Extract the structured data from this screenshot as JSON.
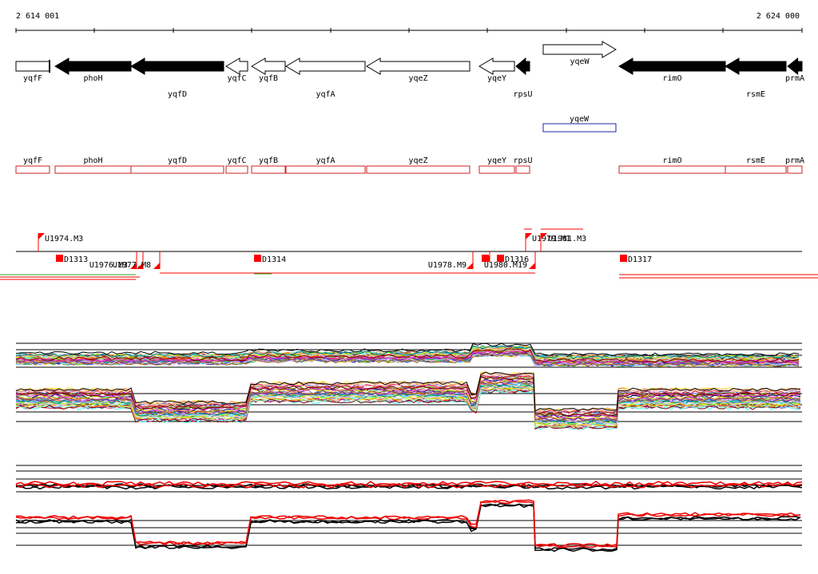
{
  "coordinates": {
    "start": "2 614 001",
    "end": "2 624 000"
  },
  "genes": [
    {
      "name": "yqfF",
      "filled": false,
      "dir": "right",
      "level": "low"
    },
    {
      "name": "phoH",
      "filled": true,
      "dir": "left",
      "level": "low"
    },
    {
      "name": "yqfD",
      "filled": true,
      "dir": "left",
      "level": "high"
    },
    {
      "name": "yqfC",
      "filled": false,
      "dir": "left",
      "level": "low"
    },
    {
      "name": "yqfB",
      "filled": false,
      "dir": "left",
      "level": "low"
    },
    {
      "name": "yqfA",
      "filled": false,
      "dir": "left",
      "level": "high"
    },
    {
      "name": "yqeZ",
      "filled": false,
      "dir": "left",
      "level": "low"
    },
    {
      "name": "yqeY",
      "filled": false,
      "dir": "left",
      "level": "low"
    },
    {
      "name": "rpsU",
      "filled": true,
      "dir": "left",
      "level": "high"
    },
    {
      "name": "yqeW",
      "filled": false,
      "dir": "right",
      "level": "top"
    },
    {
      "name": "rimO",
      "filled": true,
      "dir": "left",
      "level": "low"
    },
    {
      "name": "rsmE",
      "filled": true,
      "dir": "left",
      "level": "high"
    },
    {
      "name": "prmA",
      "filled": true,
      "dir": "left",
      "level": "low"
    }
  ],
  "forward_transcript": {
    "name": "yqeW",
    "color": "#2222aa"
  },
  "reverse_transcripts": [
    {
      "name": "yqfF"
    },
    {
      "name": "phoH"
    },
    {
      "name": "yqfD"
    },
    {
      "name": "yqfC"
    },
    {
      "name": "yqfB"
    },
    {
      "name": "yqfA"
    },
    {
      "name": "yqeZ"
    },
    {
      "name": "yqeY"
    },
    {
      "name": "rpsU"
    },
    {
      "name": "rimO"
    },
    {
      "name": "rsmE"
    },
    {
      "name": "prmA"
    }
  ],
  "upstream_labels": [
    "U1974.M3",
    "U1979.M1",
    "U1981.M3",
    "U1976.M3",
    "U1977.M8",
    "U1978.M9",
    "U1980.M19"
  ],
  "downstream_labels": [
    "D1313",
    "D1314",
    "D1316",
    "D1317"
  ],
  "marker_color": "#ff0000",
  "colors": {
    "filled_gene": "#000000",
    "outline_gene": "#000000",
    "reverse_box": "#cc2222",
    "profile_black": "#000000",
    "profile_red": "#ee0000"
  }
}
